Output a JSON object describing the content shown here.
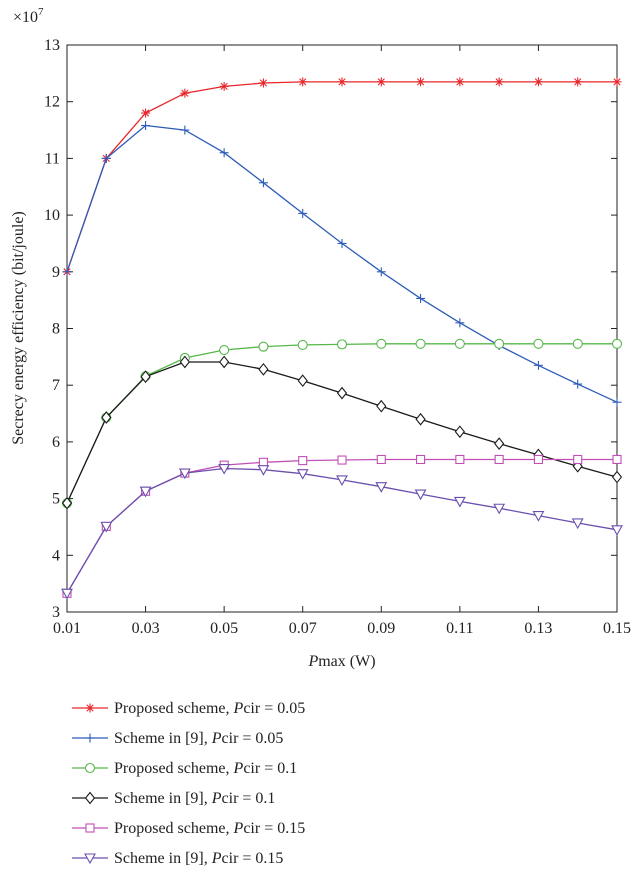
{
  "chart_data": {
    "type": "line",
    "title": "",
    "xlabel": {
      "italic": "P",
      "rest": "max (W)"
    },
    "ylabel": "Secrecy energy efficiency (bit/joule)",
    "y_multiplier": {
      "prefix": "×10",
      "exponent": "7"
    },
    "xlim": [
      0.01,
      0.15
    ],
    "ylim": [
      3,
      13
    ],
    "x_ticks": [
      0.01,
      0.03,
      0.05,
      0.07,
      0.09,
      0.11,
      0.13,
      0.15
    ],
    "x_tick_labels": [
      "0.01",
      "0.03",
      "0.05",
      "0.07",
      "0.09",
      "0.11",
      "0.13",
      "0.15"
    ],
    "y_ticks": [
      3,
      4,
      5,
      6,
      7,
      8,
      9,
      10,
      11,
      12,
      13
    ],
    "y_tick_labels": [
      "3",
      "4",
      "5",
      "6",
      "7",
      "8",
      "9",
      "10",
      "11",
      "12",
      "13"
    ],
    "grid": false,
    "legend_position": "below",
    "x": [
      0.01,
      0.02,
      0.03,
      0.04,
      0.05,
      0.06,
      0.07,
      0.08,
      0.09,
      0.1,
      0.11,
      0.12,
      0.13,
      0.14,
      0.15
    ],
    "series": [
      {
        "name_prefix": "Proposed scheme, ",
        "name_italic": "P",
        "name_suffix": "cir = 0.05",
        "color": "#e8262b",
        "marker": "asterisk",
        "values": [
          9.0,
          11.0,
          11.8,
          12.15,
          12.27,
          12.33,
          12.35,
          12.35,
          12.35,
          12.35,
          12.35,
          12.35,
          12.35,
          12.35,
          12.35
        ]
      },
      {
        "name_prefix": "Scheme in [9], ",
        "name_italic": "P",
        "name_suffix": "cir = 0.05",
        "color": "#2e5cb8",
        "marker": "plus",
        "values": [
          9.0,
          11.0,
          11.58,
          11.5,
          11.1,
          10.57,
          10.03,
          9.5,
          9.0,
          8.53,
          8.1,
          7.7,
          7.35,
          7.02,
          6.7
        ]
      },
      {
        "name_prefix": "Proposed scheme, ",
        "name_italic": "P",
        "name_suffix": "cir = 0.1",
        "color": "#56b84a",
        "marker": "circle",
        "values": [
          4.92,
          6.43,
          7.16,
          7.48,
          7.62,
          7.68,
          7.71,
          7.72,
          7.73,
          7.73,
          7.73,
          7.73,
          7.73,
          7.73,
          7.73
        ]
      },
      {
        "name_prefix": "Scheme in [9], ",
        "name_italic": "P",
        "name_suffix": "cir = 0.1",
        "color": "#1a1a1a",
        "marker": "diamond",
        "values": [
          4.92,
          6.43,
          7.15,
          7.41,
          7.41,
          7.28,
          7.08,
          6.86,
          6.63,
          6.4,
          6.18,
          5.97,
          5.77,
          5.57,
          5.38
        ]
      },
      {
        "name_prefix": "Proposed scheme, ",
        "name_italic": "P",
        "name_suffix": "cir = 0.15",
        "color": "#c14fb3",
        "marker": "square",
        "values": [
          3.33,
          4.51,
          5.13,
          5.45,
          5.59,
          5.64,
          5.67,
          5.68,
          5.69,
          5.69,
          5.69,
          5.69,
          5.69,
          5.69,
          5.69
        ]
      },
      {
        "name_prefix": "Scheme in [9], ",
        "name_italic": "P",
        "name_suffix": "cir = 0.15",
        "color": "#6b4fae",
        "marker": "triangle-down",
        "values": [
          3.33,
          4.51,
          5.13,
          5.45,
          5.53,
          5.51,
          5.44,
          5.33,
          5.21,
          5.08,
          4.95,
          4.83,
          4.7,
          4.57,
          4.45
        ]
      }
    ]
  }
}
